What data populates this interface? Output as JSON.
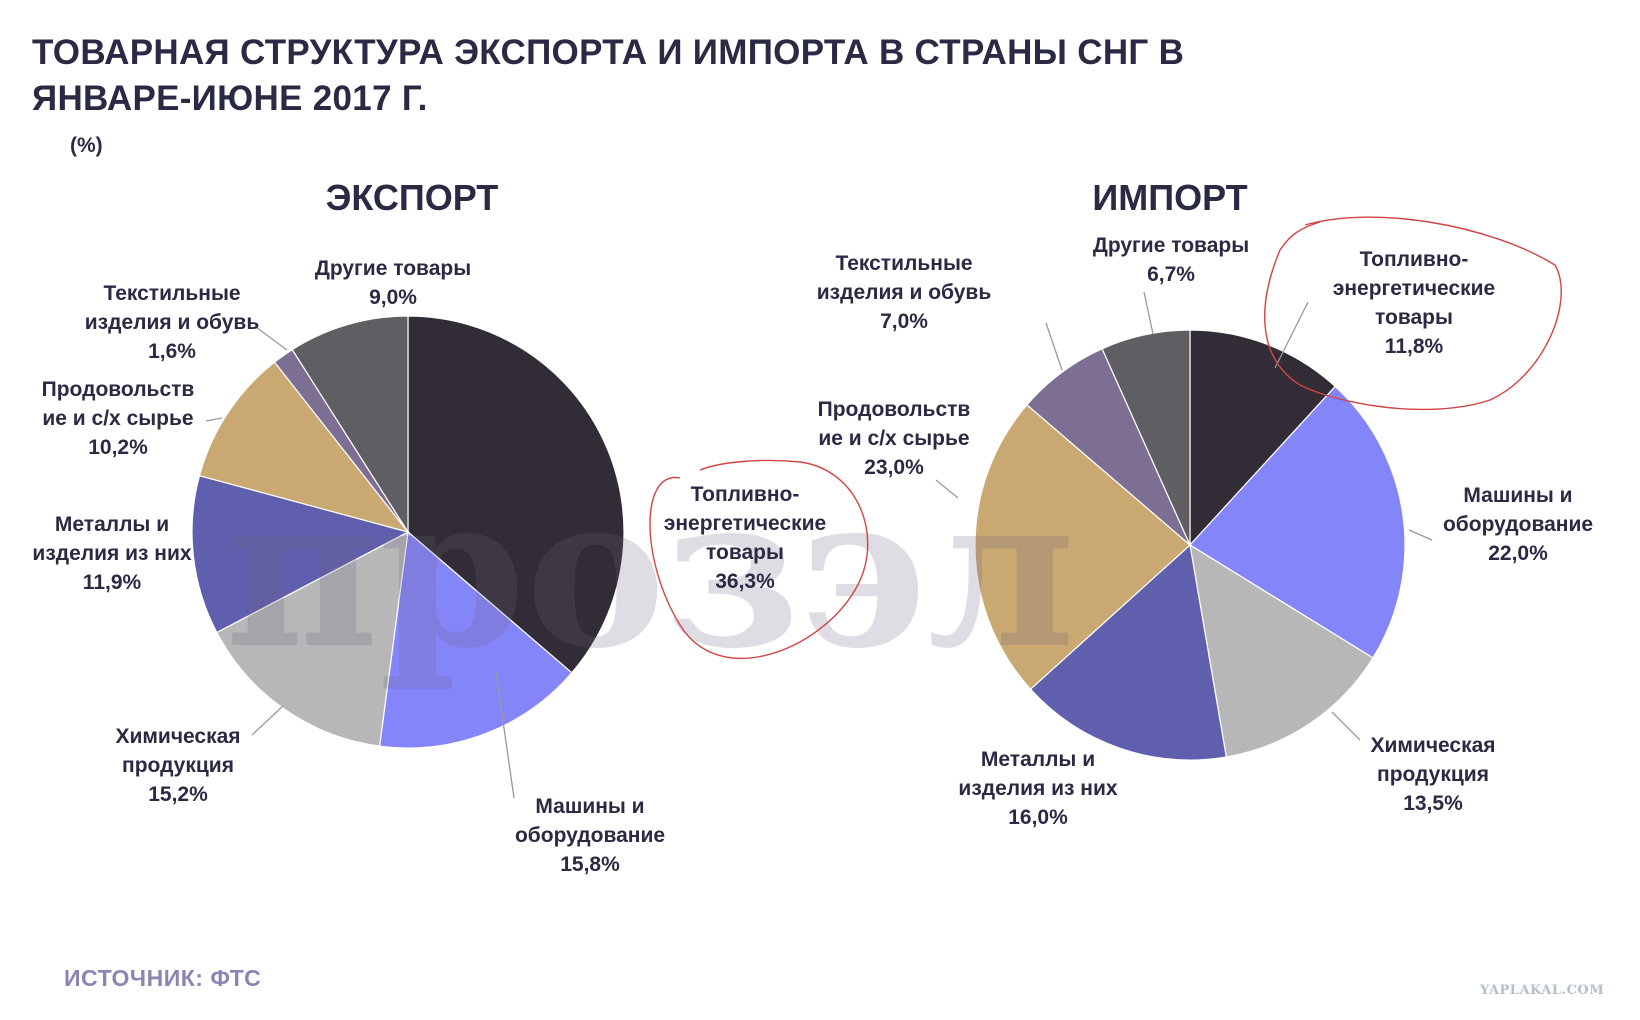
{
  "header": {
    "title_line1": "ТОВАРНАЯ СТРУКТУРА ЭКСПОРТА И ИМПОРТА В СТРАНЫ СНГ В",
    "title_line2": "ЯНВАРЕ-ИЮНЕ 2017 Г.",
    "unit": "(%)"
  },
  "footer": {
    "source": "ИСТОЧНИК:  ФТС",
    "site_watermark": "YAPLAKAL.COM"
  },
  "watermark_text": "прозэл",
  "colors": {
    "fuel": "#312c35",
    "machinery": "#8585fa",
    "chemical": "#b7b7b7",
    "metals": "#5f5fad",
    "food": "#c9a872",
    "textile": "#7d6e94",
    "other": "#5f5f63",
    "annotation": "#d04545",
    "text": "#2b2a44"
  },
  "chart_data": [
    {
      "type": "pie",
      "title": "ЭКСПОРТ",
      "unit": "%",
      "slices": [
        {
          "key": "fuel",
          "name": "Топливно-энергетические товары",
          "label_lines": [
            "Топливно-",
            "энергетические",
            "товары"
          ],
          "value": 36.3,
          "value_label": "36,3%",
          "color": "#312c35",
          "circled": true
        },
        {
          "key": "machinery",
          "name": "Машины и оборудование",
          "label_lines": [
            "Машины и",
            "оборудование"
          ],
          "value": 15.8,
          "value_label": "15,8%",
          "color": "#8585fa",
          "circled": false
        },
        {
          "key": "chemical",
          "name": "Химическая продукция",
          "label_lines": [
            "Химическая",
            "продукция"
          ],
          "value": 15.2,
          "value_label": "15,2%",
          "color": "#b7b7b7",
          "circled": false
        },
        {
          "key": "metals",
          "name": "Металлы и изделия из них",
          "label_lines": [
            "Металлы и",
            "изделия из них"
          ],
          "value": 11.9,
          "value_label": "11,9%",
          "color": "#5f5fad",
          "circled": false
        },
        {
          "key": "food",
          "name": "Продовольствие и с/х сырье",
          "label_lines": [
            "Продовольств",
            "ие и с/х сырье"
          ],
          "value": 10.2,
          "value_label": "10,2%",
          "color": "#c9a872",
          "circled": false
        },
        {
          "key": "textile",
          "name": "Текстильные изделия и обувь",
          "label_lines": [
            "Текстильные",
            "изделия и обувь"
          ],
          "value": 1.6,
          "value_label": "1,6%",
          "color": "#7d6e94",
          "circled": false
        },
        {
          "key": "other",
          "name": "Другие товары",
          "label_lines": [
            "Другие товары"
          ],
          "value": 9.0,
          "value_label": "9,0%",
          "color": "#5f5f63",
          "circled": false
        }
      ]
    },
    {
      "type": "pie",
      "title": "ИМПОРТ",
      "unit": "%",
      "slices": [
        {
          "key": "fuel",
          "name": "Топливно-энергетические товары",
          "label_lines": [
            "Топливно-",
            "энергетические",
            "товары"
          ],
          "value": 11.8,
          "value_label": "11,8%",
          "color": "#312c35",
          "circled": true
        },
        {
          "key": "machinery",
          "name": "Машины и оборудование",
          "label_lines": [
            "Машины и",
            "оборудование"
          ],
          "value": 22.0,
          "value_label": "22,0%",
          "color": "#8585fa",
          "circled": false
        },
        {
          "key": "chemical",
          "name": "Химическая продукция",
          "label_lines": [
            "Химическая",
            "продукция"
          ],
          "value": 13.5,
          "value_label": "13,5%",
          "color": "#b7b7b7",
          "circled": false
        },
        {
          "key": "metals",
          "name": "Металлы и изделия из них",
          "label_lines": [
            "Металлы и",
            "изделия из них"
          ],
          "value": 16.0,
          "value_label": "16,0%",
          "color": "#5f5fad",
          "circled": false
        },
        {
          "key": "food",
          "name": "Продовольствие и с/х сырье",
          "label_lines": [
            "Продовольств",
            "ие и с/х сырье"
          ],
          "value": 23.0,
          "value_label": "23,0%",
          "color": "#c9a872",
          "circled": false
        },
        {
          "key": "textile",
          "name": "Текстильные изделия и обувь",
          "label_lines": [
            "Текстильные",
            "изделия и обувь"
          ],
          "value": 7.0,
          "value_label": "7,0%",
          "color": "#7d6e94",
          "circled": false
        },
        {
          "key": "other",
          "name": "Другие товары",
          "label_lines": [
            "Другие товары"
          ],
          "value": 6.7,
          "value_label": "6,7%",
          "color": "#5f5f63",
          "circled": false
        }
      ]
    }
  ]
}
